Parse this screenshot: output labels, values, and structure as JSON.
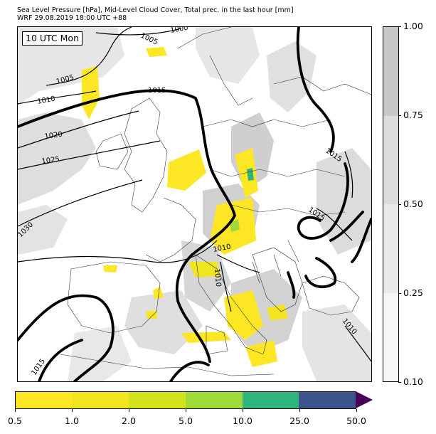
{
  "header": {
    "line1": "Sea Level Pressure [hPa], Mid-Level Cloud Cover, Total prec. in the last hour [mm]",
    "line2": "WRF 29.08.2019 18:00 UTC +88"
  },
  "map": {
    "time_label": "10 UTC Mon",
    "isobar_labels": [
      "1000",
      "1005",
      "1005",
      "1010",
      "1015",
      "1020",
      "1025",
      "1030",
      "1015",
      "1015",
      "1010",
      "1010",
      "1010",
      "1015"
    ]
  },
  "cloud_colorbar": {
    "ticks": [
      "1.00",
      "0.75",
      "0.50",
      "0.25",
      "0.10"
    ],
    "colors": [
      "#c8c8c8",
      "#dcdcdc",
      "#e9e9e9",
      "#f6f6f6"
    ]
  },
  "precip_colorbar": {
    "ticks": [
      "0.5",
      "1.0",
      "2.0",
      "5.0",
      "10.0",
      "25.0",
      "50.0"
    ],
    "colors": [
      "#fde725",
      "#f0e51e",
      "#d2e21b",
      "#a0da39",
      "#2fb47c",
      "#3b528b"
    ],
    "extend_color": "#440154"
  }
}
